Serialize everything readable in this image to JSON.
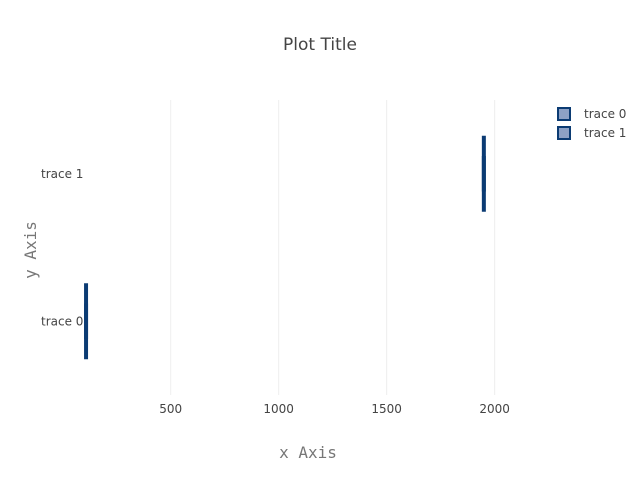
{
  "chart_data": {
    "type": "box",
    "title": "Plot Title",
    "xlabel": "x Axis",
    "ylabel": "y Axis",
    "orientation": "horizontal",
    "xlim": [
      80,
      2210
    ],
    "x_ticks": [
      500,
      1000,
      1500,
      2000
    ],
    "x_tick_labels": [
      "500",
      "1000",
      "1500",
      "2000"
    ],
    "categories": [
      "trace 0",
      "trace 1"
    ],
    "grid": "vertical",
    "legend_placement": "top-right",
    "series": [
      {
        "name": "trace 0",
        "category": "trace 0",
        "min": 108,
        "q1": 108,
        "median": 108,
        "q3": 108,
        "max": 108,
        "fill_color": "#8da1c5",
        "line_color": "#0b3b73"
      },
      {
        "name": "trace 1",
        "category": "trace 1",
        "min": 1950,
        "q1": 1950,
        "median": 1950,
        "q3": 1950,
        "max": 1950,
        "fill_color": "#8da1c5",
        "line_color": "#0b3b73"
      }
    ]
  }
}
